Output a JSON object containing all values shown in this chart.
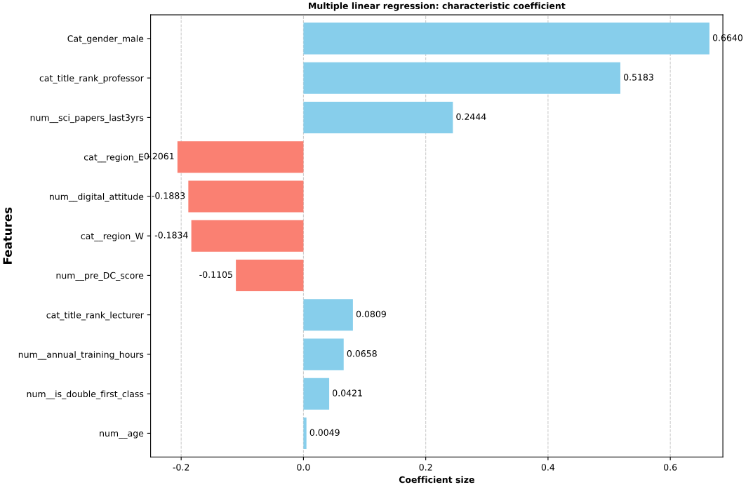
{
  "chart_data": {
    "type": "bar",
    "orientation": "horizontal",
    "title": "Multiple linear regression: characteristic coefficient",
    "xlabel": "Coefficient size",
    "ylabel": "Features",
    "categories": [
      "Cat_gender_male",
      "cat_title_rank_professor",
      "num__sci_papers_last3yrs",
      "cat__region_E",
      "num__digital_attitude",
      "cat__region_W",
      "num__pre_DC_score",
      "cat_title_rank_lecturer",
      "num__annual_training_hours",
      "num__is_double_first_class",
      "num__age"
    ],
    "values": [
      0.664,
      0.5183,
      0.2444,
      -0.2061,
      -0.1883,
      -0.1834,
      -0.1105,
      0.0809,
      0.0658,
      0.0421,
      0.0049
    ],
    "value_labels": [
      "0.6640",
      "0.5183",
      "0.2444",
      "-0.2061",
      "-0.1883",
      "-0.1834",
      "-0.1105",
      "0.0809",
      "0.0658",
      "0.0421",
      "0.0049"
    ],
    "colors": [
      "#87ceeb",
      "#87ceeb",
      "#87ceeb",
      "#fa8072",
      "#fa8072",
      "#fa8072",
      "#fa8072",
      "#87ceeb",
      "#87ceeb",
      "#87ceeb",
      "#87ceeb"
    ],
    "xlim": [
      -0.25,
      0.686
    ],
    "xticks": [
      {
        "value": -0.2,
        "label": "-0.2"
      },
      {
        "value": 0.0,
        "label": "0.0"
      },
      {
        "value": 0.2,
        "label": "0.2"
      },
      {
        "value": 0.4,
        "label": "0.4"
      },
      {
        "value": 0.6,
        "label": "0.6"
      }
    ],
    "grid": "x"
  }
}
